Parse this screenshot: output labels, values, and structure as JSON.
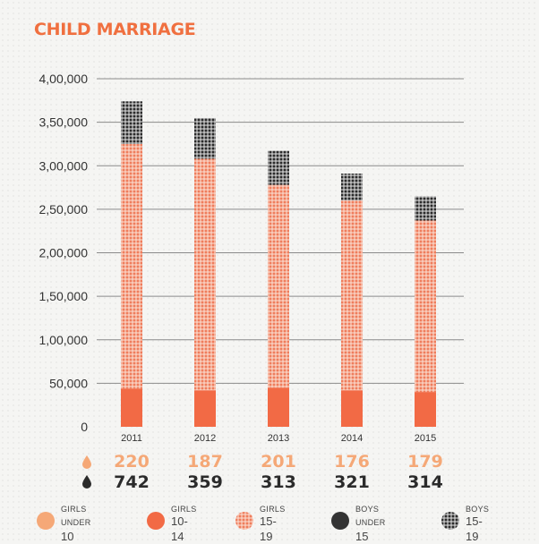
{
  "title": "CHILD MARRIAGE",
  "colors": {
    "accent": "#f07040",
    "girls_under_10": "#f5a877",
    "girls_10_14": "#f26a45",
    "girls_15_19": "#f08a68",
    "boys_under_15": "#333333",
    "boys_15_19": "#2b2b2b",
    "light_row": "#f5a877",
    "dark_row": "#2b2b2b"
  },
  "chart_data": {
    "type": "bar",
    "stacked": true,
    "categories": [
      "2011",
      "2012",
      "2013",
      "2014",
      "2015"
    ],
    "ylim": [
      0,
      400000
    ],
    "yticks": [
      0,
      50000,
      100000,
      150000,
      200000,
      250000,
      300000,
      350000,
      400000
    ],
    "ytick_labels": [
      "0",
      "50,000",
      "1,00,000",
      "1,50,000",
      "2,00,000",
      "2,50,000",
      "3,00,000",
      "3,50,000",
      "4,00,000"
    ],
    "series": [
      {
        "name": "GIRLS 10-14",
        "values": [
          44000,
          42000,
          45000,
          42000,
          40000
        ]
      },
      {
        "name": "GIRLS 15-19",
        "values": [
          281000,
          266000,
          233000,
          218000,
          197000
        ]
      },
      {
        "name": "BOYS 15-19",
        "values": [
          49000,
          47000,
          39000,
          31000,
          28000
        ]
      }
    ],
    "grid": true
  },
  "counts": {
    "girls_under_10": [
      "220",
      "187",
      "201",
      "176",
      "179"
    ],
    "boys_under_15": [
      "742",
      "359",
      "313",
      "321",
      "314"
    ]
  },
  "legend": [
    {
      "line1": "GIRLS",
      "line2": "UNDER",
      "line2b": "10",
      "icon": "solid-circle-light"
    },
    {
      "line1": "GIRLS",
      "line2": "",
      "line2b": "10-14",
      "icon": "solid-circle-red"
    },
    {
      "line1": "GIRLS",
      "line2": "",
      "line2b": "15-19",
      "icon": "dotted-circle-orange"
    },
    {
      "line1": "BOYS",
      "line2": "UNDER",
      "line2b": "15",
      "icon": "solid-circle-dark"
    },
    {
      "line1": "BOYS",
      "line2": "",
      "line2b": "15-19",
      "icon": "dotted-circle-dark"
    }
  ]
}
